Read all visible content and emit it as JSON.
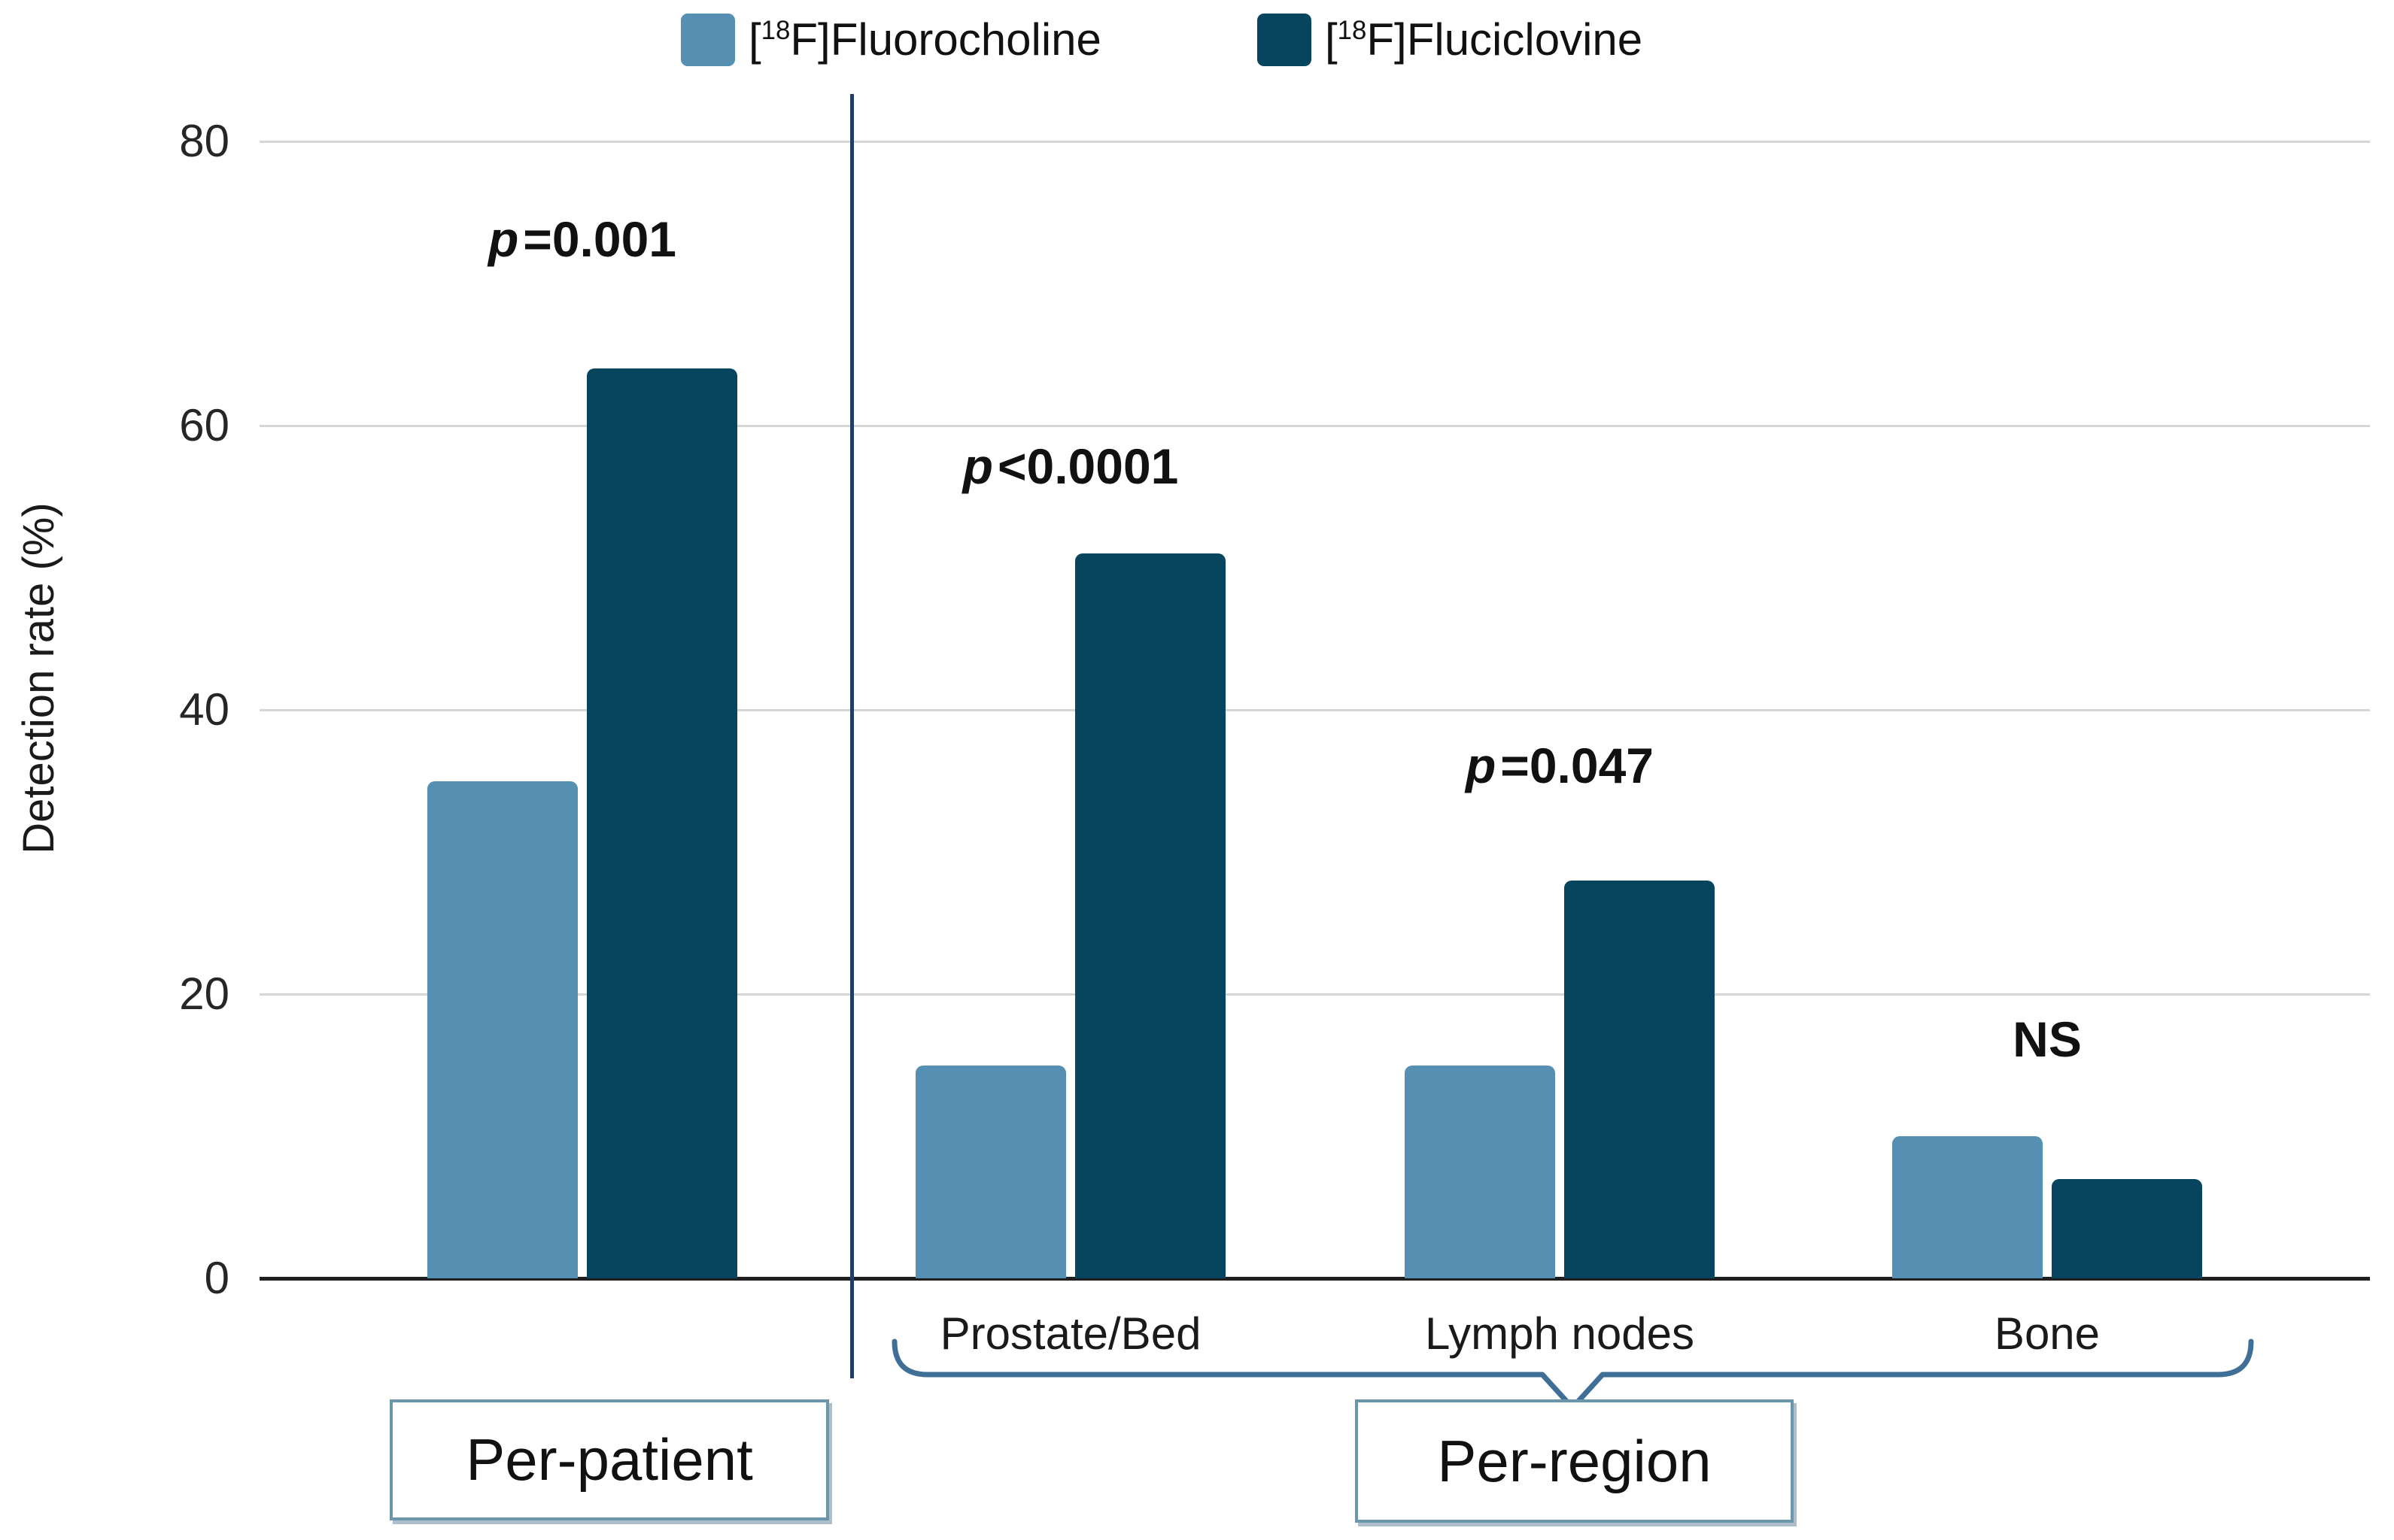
{
  "chart_data": {
    "type": "bar",
    "title": "",
    "ylabel": "Detection rate (%)",
    "ylim": [
      0,
      80
    ],
    "yticks": [
      0,
      20,
      40,
      60,
      80
    ],
    "grid": "horizontal",
    "legend_position": "top-center",
    "legend": [
      {
        "label": "[18F]Fluorocholine",
        "label_parts": {
          "open": "[",
          "superscript": "18",
          "rest": "F]Fluorocholine"
        },
        "color": "#5590b2"
      },
      {
        "label": "[18F]Fluciclovine",
        "label_parts": {
          "open": "[",
          "superscript": "18",
          "rest": "F]Fluciclovine"
        },
        "color": "#07455f"
      }
    ],
    "categories": [
      "Per-patient",
      "Prostate/Bed",
      "Lymph nodes",
      "Bone"
    ],
    "x_tick_labels": [
      "",
      "Prostate/Bed",
      "Lymph nodes",
      "Bone"
    ],
    "series": [
      {
        "name": "[18F]Fluorocholine",
        "color": "#5590b2",
        "values": [
          35,
          15,
          15,
          10
        ]
      },
      {
        "name": "[18F]Fluciclovine",
        "color": "#07455f",
        "values": [
          64,
          51,
          28,
          7
        ]
      }
    ],
    "annotations": [
      {
        "category": "Per-patient",
        "text": "p=0.001",
        "italic_prefix": "p",
        "rest": "=0.001"
      },
      {
        "category": "Prostate/Bed",
        "text": "p<0.0001",
        "italic_prefix": "p",
        "rest": "<0.0001"
      },
      {
        "category": "Lymph nodes",
        "text": "p=0.047",
        "italic_prefix": "p",
        "rest": "=0.047"
      },
      {
        "category": "Bone",
        "text": "NS",
        "italic_prefix": "",
        "rest": "NS"
      }
    ],
    "group_sections": [
      {
        "label": "Per-patient",
        "categories": [
          "Per-patient"
        ]
      },
      {
        "label": "Per-region",
        "categories": [
          "Prostate/Bed",
          "Lymph nodes",
          "Bone"
        ]
      }
    ],
    "colors": {
      "axis": "#1f1f1f",
      "gridline": "#d6d6d6",
      "divider": "#223d66",
      "bracket": "#3f6f96",
      "box_border": "#6b96ab"
    }
  }
}
